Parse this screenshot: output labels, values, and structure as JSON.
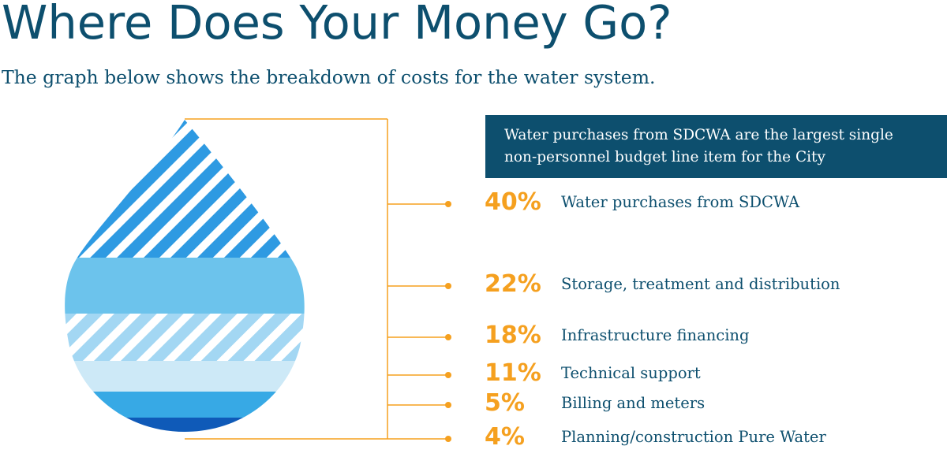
{
  "header": {
    "title": "Where Does Your Money Go?",
    "subtitle": "The graph below shows the breakdown of costs for the water system."
  },
  "callout": {
    "line1": "Water purchases from SDCWA are the largest single",
    "line2": "non-personnel budget line item for the City"
  },
  "colors": {
    "text_dark": "#0d4f6e",
    "accent_orange": "#f5a01f",
    "band_stripe_blue": "#2e9ae2",
    "band_light_blue": "#6cc3ec",
    "band_stripe_light": "#a3d7f3",
    "band_pale": "#cde9f7",
    "band_mid": "#37a9e5",
    "band_dark": "#0f5ab8"
  },
  "chart_data": {
    "type": "area",
    "shape": "water-drop",
    "title": "Where Does Your Money Go?",
    "categories": [
      "Water purchases from SDCWA",
      "Storage, treatment and distribution",
      "Infrastructure financing",
      "Technical support",
      "Billing and meters",
      "Planning/construction Pure Water"
    ],
    "values": [
      40,
      22,
      18,
      11,
      5,
      4
    ],
    "value_labels": [
      "40%",
      "22%",
      "18%",
      "11%",
      "5%",
      "4%"
    ],
    "unit": "%",
    "band_fills": [
      "stripe-blue",
      "light-blue",
      "stripe-light",
      "pale",
      "mid-blue",
      "dark-blue"
    ]
  }
}
